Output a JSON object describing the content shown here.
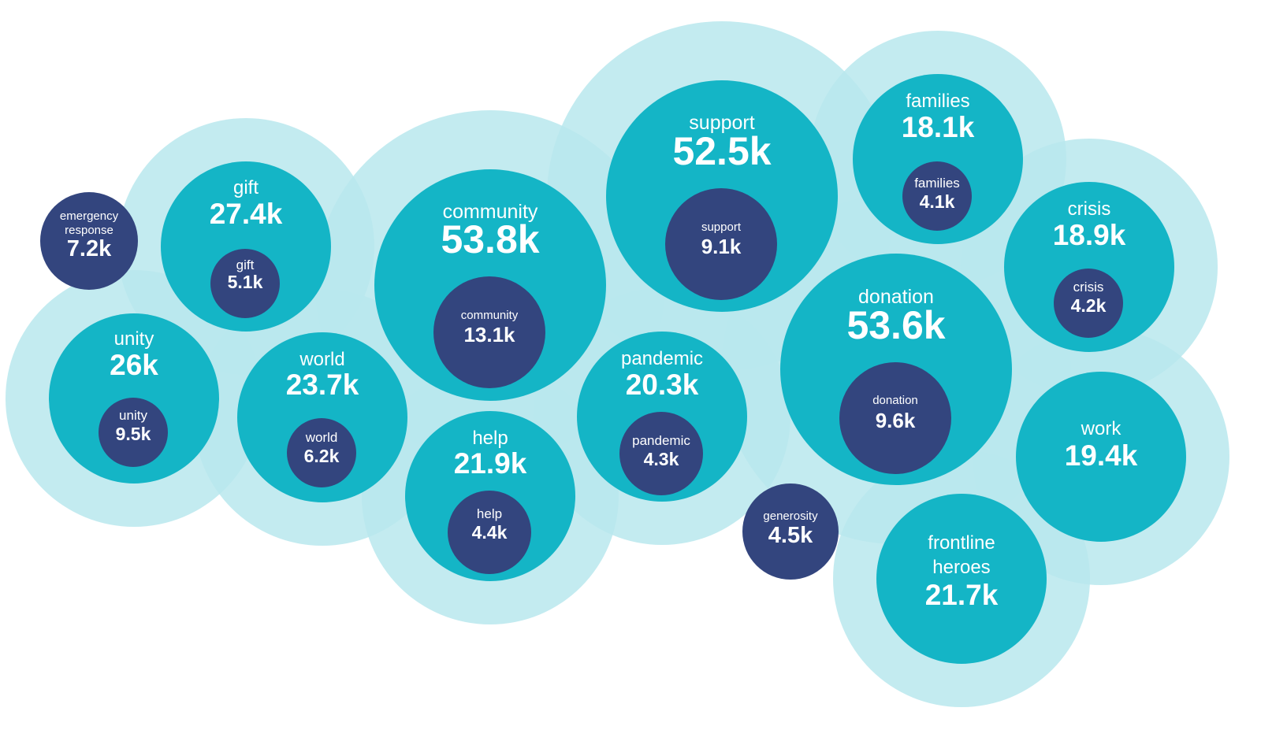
{
  "chart_data": {
    "type": "bubble",
    "title": "",
    "colors": {
      "halo": "#b8e8ed",
      "primary": "#14b5c6",
      "secondary": "#33457e",
      "text": "#ffffff"
    },
    "bubbles": [
      {
        "term": "emergency response",
        "term_lines": [
          "emergency",
          "response"
        ],
        "value": "7.2k",
        "count": 7200,
        "kind": "secondary-only"
      },
      {
        "term": "gift",
        "value": "27.4k",
        "count": 27400,
        "sub": {
          "term": "gift",
          "value": "5.1k",
          "count": 5100
        }
      },
      {
        "term": "unity",
        "value": "26k",
        "count": 26000,
        "sub": {
          "term": "unity",
          "value": "9.5k",
          "count": 9500
        }
      },
      {
        "term": "world",
        "value": "23.7k",
        "count": 23700,
        "sub": {
          "term": "world",
          "value": "6.2k",
          "count": 6200
        }
      },
      {
        "term": "community",
        "value": "53.8k",
        "count": 53800,
        "sub": {
          "term": "community",
          "value": "13.1k",
          "count": 13100
        }
      },
      {
        "term": "help",
        "value": "21.9k",
        "count": 21900,
        "sub": {
          "term": "help",
          "value": "4.4k",
          "count": 4400
        }
      },
      {
        "term": "support",
        "value": "52.5k",
        "count": 52500,
        "sub": {
          "term": "support",
          "value": "9.1k",
          "count": 9100
        }
      },
      {
        "term": "pandemic",
        "value": "20.3k",
        "count": 20300,
        "sub": {
          "term": "pandemic",
          "value": "4.3k",
          "count": 4300
        }
      },
      {
        "term": "families",
        "value": "18.1k",
        "count": 18100,
        "sub": {
          "term": "families",
          "value": "4.1k",
          "count": 4100
        }
      },
      {
        "term": "donation",
        "value": "53.6k",
        "count": 53600,
        "sub": {
          "term": "donation",
          "value": "9.6k",
          "count": 9600
        }
      },
      {
        "term": "crisis",
        "value": "18.9k",
        "count": 18900,
        "sub": {
          "term": "crisis",
          "value": "4.2k",
          "count": 4200
        }
      },
      {
        "term": "generosity",
        "value": "4.5k",
        "count": 4500,
        "kind": "secondary-only"
      },
      {
        "term": "work",
        "value": "19.4k",
        "count": 19400
      },
      {
        "term": "frontline heroes",
        "term_lines": [
          "frontline",
          "heroes"
        ],
        "value": "21.7k",
        "count": 21700
      }
    ]
  }
}
